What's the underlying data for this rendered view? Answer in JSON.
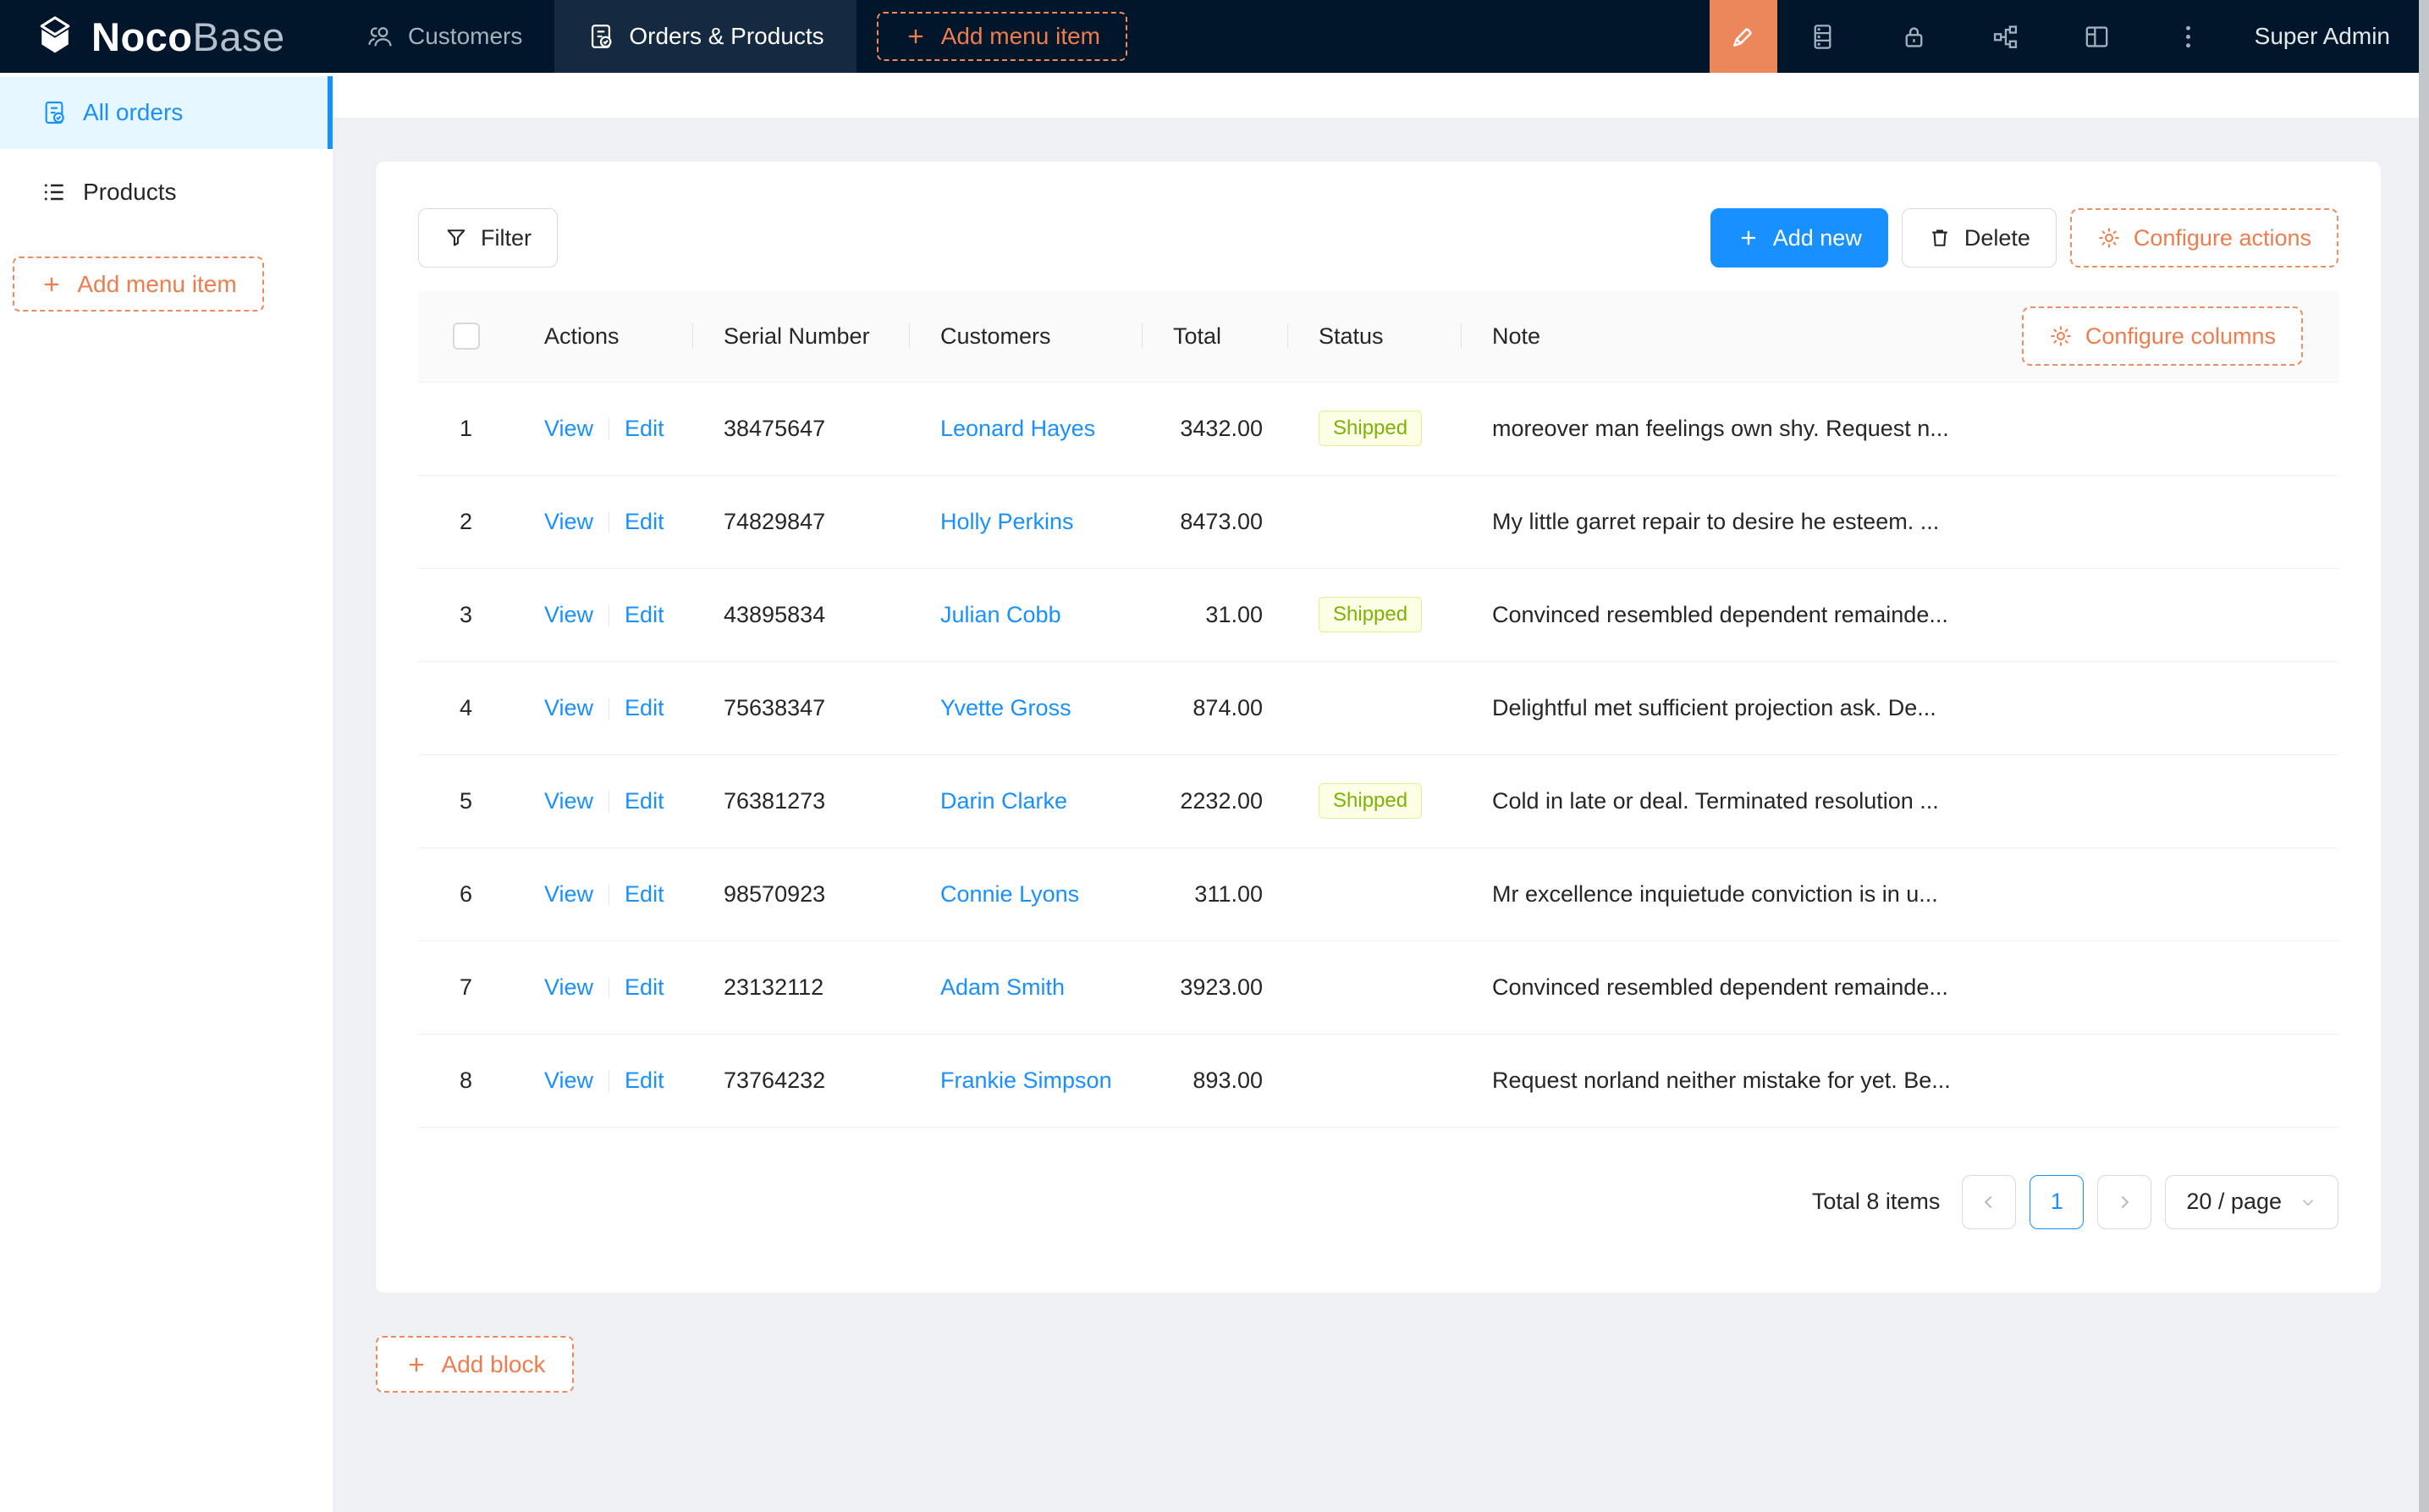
{
  "topbar": {
    "logo": {
      "bold": "Noco",
      "light": "Base"
    },
    "nav": [
      {
        "label": "Customers",
        "icon": "team-icon",
        "active": false
      },
      {
        "label": "Orders & Products",
        "icon": "order-doc-icon",
        "active": true
      }
    ],
    "add_menu_item_label": "Add menu item",
    "icons": [
      "designer-pen-icon",
      "collections-icon",
      "lock-icon",
      "workflow-icon",
      "layout-icon",
      "more-ellipsis-icon"
    ],
    "user": "Super Admin"
  },
  "sidebar": {
    "items": [
      {
        "label": "All orders",
        "icon": "order-doc-icon",
        "active": true
      },
      {
        "label": "Products",
        "icon": "list-icon",
        "active": false
      }
    ],
    "add_menu_item_label": "Add menu item"
  },
  "page": {
    "title": "All orders"
  },
  "toolbar": {
    "filter": "Filter",
    "add_new": "Add new",
    "delete": "Delete",
    "configure_actions": "Configure actions"
  },
  "table": {
    "configure_columns": "Configure columns",
    "columns": [
      "Actions",
      "Serial Number",
      "Customers",
      "Total",
      "Status",
      "Note"
    ],
    "actions": [
      "View",
      "Edit"
    ],
    "rows": [
      {
        "index": "1",
        "serial": "38475647",
        "customer": "Leonard Hayes",
        "total": "3432.00",
        "status": "Shipped",
        "note": "moreover man feelings own shy. Request n..."
      },
      {
        "index": "2",
        "serial": "74829847",
        "customer": "Holly Perkins",
        "total": "8473.00",
        "status": "",
        "note": "My little garret repair to desire he esteem. ..."
      },
      {
        "index": "3",
        "serial": "43895834",
        "customer": "Julian Cobb",
        "total": "31.00",
        "status": "Shipped",
        "note": "Convinced resembled dependent remainde..."
      },
      {
        "index": "4",
        "serial": "75638347",
        "customer": "Yvette Gross",
        "total": "874.00",
        "status": "",
        "note": "Delightful met sufficient projection ask. De..."
      },
      {
        "index": "5",
        "serial": "76381273",
        "customer": "Darin Clarke",
        "total": "2232.00",
        "status": "Shipped",
        "note": "Cold in late or deal. Terminated resolution ..."
      },
      {
        "index": "6",
        "serial": "98570923",
        "customer": "Connie Lyons",
        "total": "311.00",
        "status": "",
        "note": "Mr excellence inquietude conviction is in u..."
      },
      {
        "index": "7",
        "serial": "23132112",
        "customer": "Adam Smith",
        "total": "3923.00",
        "status": "",
        "note": "Convinced resembled dependent remainde..."
      },
      {
        "index": "8",
        "serial": "73764232",
        "customer": "Frankie Simpson",
        "total": "893.00",
        "status": "",
        "note": "Request norland neither mistake for yet. Be..."
      }
    ]
  },
  "pagination": {
    "total_text": "Total 8 items",
    "current": "1",
    "page_size": "20 / page"
  },
  "footer": {
    "add_block": "Add block"
  },
  "colors": {
    "topbar_bg": "#02162b",
    "topbar_selected_tab_bg": "#152a41",
    "primary_blue": "#1890ff",
    "accent_orange": "#ee7d4e",
    "designer_button_bg": "#ec875c",
    "active_menu_bg": "#e6f7ff",
    "status_tag_bg": "#fcffe6",
    "status_tag_border": "#e4ef8e",
    "status_tag_text": "#7cb305",
    "page_bg": "#eef0f4"
  }
}
